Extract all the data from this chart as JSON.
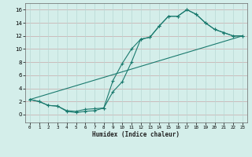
{
  "xlabel": "Humidex (Indice chaleur)",
  "bg_color": "#d4eeea",
  "grid_h_color": "#c8a8a8",
  "grid_v_color": "#b8d8d4",
  "line_color": "#1a7a6e",
  "xlim": [
    -0.5,
    23.5
  ],
  "ylim": [
    -1.2,
    17.0
  ],
  "xticks": [
    0,
    1,
    2,
    3,
    4,
    5,
    6,
    7,
    8,
    9,
    10,
    11,
    12,
    13,
    14,
    15,
    16,
    17,
    18,
    19,
    20,
    21,
    22,
    23
  ],
  "yticks": [
    0,
    2,
    4,
    6,
    8,
    10,
    12,
    14,
    16
  ],
  "series1_x": [
    0,
    1,
    2,
    3,
    4,
    5,
    6,
    7,
    8,
    9,
    10,
    11,
    12,
    13,
    14,
    15,
    16,
    17,
    18,
    19,
    20,
    21,
    22,
    23
  ],
  "series1_y": [
    2.3,
    2.0,
    1.4,
    1.3,
    0.6,
    0.5,
    0.8,
    0.9,
    1.0,
    3.5,
    5.0,
    8.0,
    11.5,
    11.8,
    13.5,
    15.0,
    15.0,
    16.0,
    15.3,
    14.0,
    13.0,
    12.5,
    12.0,
    12.0
  ],
  "series2_x": [
    0,
    1,
    2,
    3,
    4,
    5,
    6,
    7,
    8,
    9,
    10,
    11,
    12,
    13,
    14,
    15,
    16,
    17,
    18,
    19,
    20,
    21,
    22,
    23
  ],
  "series2_y": [
    2.3,
    2.0,
    1.4,
    1.3,
    0.5,
    0.3,
    0.5,
    0.6,
    1.0,
    5.2,
    7.8,
    10.0,
    11.5,
    11.8,
    13.5,
    15.0,
    15.0,
    16.0,
    15.3,
    14.0,
    13.0,
    12.5,
    12.0,
    12.0
  ],
  "series3_x": [
    0,
    23
  ],
  "series3_y": [
    2.3,
    12.0
  ]
}
